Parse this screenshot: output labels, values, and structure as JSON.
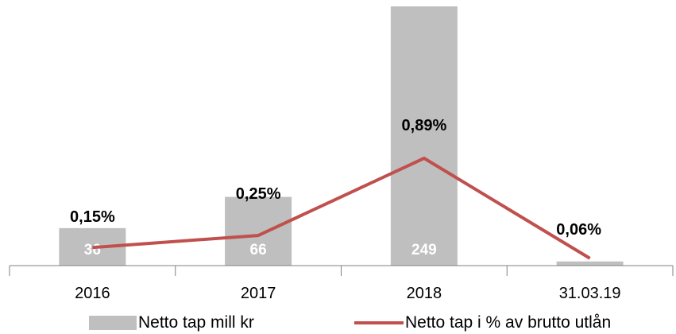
{
  "chart_data": {
    "type": "bar",
    "categories": [
      "2016",
      "2017",
      "2018",
      "31.03.19"
    ],
    "series": [
      {
        "name": "Netto tap mill kr",
        "type": "bar",
        "values": [
          36,
          66,
          249,
          4
        ],
        "labels": [
          "36",
          "66",
          "249",
          ""
        ],
        "color": "#bfbfbf",
        "label_color": "#ffffff"
      },
      {
        "name": "Netto tap i % av brutto utlån",
        "type": "line",
        "values": [
          0.15,
          0.25,
          0.89,
          0.06
        ],
        "labels": [
          "0,15%",
          "0,25%",
          "0,89%",
          "0,06%"
        ],
        "color": "#c0504d",
        "label_color": "#000000"
      }
    ],
    "grid": false,
    "legend_position": "bottom"
  }
}
